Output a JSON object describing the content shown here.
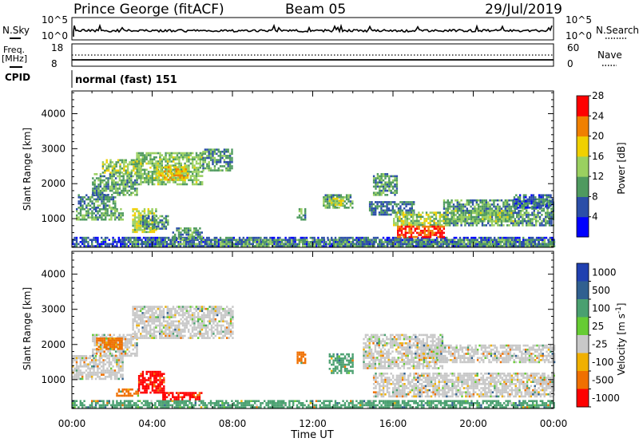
{
  "header": {
    "station": "Prince George (fitACF)",
    "beam": "Beam 05",
    "date": "29/Jul/2019"
  },
  "noise_panel": {
    "left_label": "N.Sky",
    "right_label": "N.Search",
    "left_ticks": [
      "10^5",
      "10^0"
    ],
    "right_ticks": [
      "10^5",
      "10^0"
    ]
  },
  "freq_panel": {
    "left_label_1": "Freq.",
    "left_label_2": "[MHz]",
    "right_label": "Nave",
    "left_ticks": [
      "18",
      "8"
    ],
    "right_ticks": [
      "60",
      "0"
    ]
  },
  "cpid": {
    "label": "CPID",
    "value": "normal (fast) 151"
  },
  "x_axis": {
    "title": "Time UT",
    "tick_labels": [
      "00:00",
      "04:00",
      "08:00",
      "12:00",
      "16:00",
      "20:00",
      "00:00"
    ]
  },
  "colors": {
    "power": [
      "#0000ff",
      "#2b4ea8",
      "#4f9a5f",
      "#9ad060",
      "#f0d000",
      "#f08000",
      "#ff0000"
    ],
    "velocity": [
      "#2040b0",
      "#306090",
      "#4aa070",
      "#66cc33",
      "#c8c8c8",
      "#f0b000",
      "#f07000",
      "#ff0000"
    ]
  },
  "chart_data": [
    {
      "type": "heatmap",
      "title": "",
      "xlabel": "",
      "ylabel": "Slant Range [km]",
      "xlim": [
        0,
        24
      ],
      "ylim": [
        180,
        4650
      ],
      "y_tick_labels": [
        "1000",
        "2000",
        "3000",
        "4000"
      ],
      "colorbar": {
        "label": "Power [dB]",
        "tick_labels": [
          "4",
          "8",
          "12",
          "16",
          "20",
          "24",
          "28"
        ],
        "range": [
          0,
          31
        ]
      },
      "regions": [
        {
          "t0": 0.0,
          "t1": 24.0,
          "r0": 200,
          "r1": 480,
          "value": 6
        },
        {
          "t0": 2.5,
          "t1": 24.0,
          "r0": 200,
          "r1": 420,
          "value": 11
        },
        {
          "t0": 0.2,
          "t1": 2.5,
          "r0": 1000,
          "r1": 1300,
          "value": 12
        },
        {
          "t0": 0.3,
          "t1": 2.2,
          "r0": 1300,
          "r1": 1700,
          "value": 10
        },
        {
          "t0": 1.0,
          "t1": 3.2,
          "r0": 1700,
          "r1": 2300,
          "value": 12
        },
        {
          "t0": 1.5,
          "t1": 3.5,
          "r0": 2300,
          "r1": 2700,
          "value": 15
        },
        {
          "t0": 3.2,
          "t1": 6.5,
          "r0": 2000,
          "r1": 2900,
          "value": 14
        },
        {
          "t0": 4.2,
          "t1": 5.8,
          "r0": 2100,
          "r1": 2500,
          "value": 20
        },
        {
          "t0": 6.5,
          "t1": 8.0,
          "r0": 2400,
          "r1": 3000,
          "value": 11
        },
        {
          "t0": 3.0,
          "t1": 4.2,
          "r0": 600,
          "r1": 1300,
          "value": 17
        },
        {
          "t0": 3.5,
          "t1": 4.8,
          "r0": 700,
          "r1": 1100,
          "value": 10
        },
        {
          "t0": 5.0,
          "t1": 6.5,
          "r0": 450,
          "r1": 750,
          "value": 11
        },
        {
          "t0": 11.2,
          "t1": 11.6,
          "r0": 1000,
          "r1": 1300,
          "value": 12
        },
        {
          "t0": 12.5,
          "t1": 14.0,
          "r0": 1300,
          "r1": 1700,
          "value": 12
        },
        {
          "t0": 12.8,
          "t1": 13.5,
          "r0": 1400,
          "r1": 1600,
          "value": 18
        },
        {
          "t0": 15.0,
          "t1": 16.2,
          "r0": 1700,
          "r1": 2300,
          "value": 11
        },
        {
          "t0": 14.8,
          "t1": 17.0,
          "r0": 1100,
          "r1": 1500,
          "value": 9
        },
        {
          "t0": 16.0,
          "t1": 18.7,
          "r0": 800,
          "r1": 1200,
          "value": 16
        },
        {
          "t0": 16.2,
          "t1": 18.5,
          "r0": 450,
          "r1": 800,
          "value": 27
        },
        {
          "t0": 18.5,
          "t1": 24.0,
          "r0": 800,
          "r1": 1550,
          "value": 11
        },
        {
          "t0": 18.8,
          "t1": 22.0,
          "r0": 900,
          "r1": 1250,
          "value": 14
        },
        {
          "t0": 22.0,
          "t1": 24.0,
          "r0": 1300,
          "r1": 1700,
          "value": 8
        }
      ]
    },
    {
      "type": "heatmap",
      "title": "",
      "xlabel": "Time UT",
      "ylabel": "Slant Range [km]",
      "xlim": [
        0,
        24
      ],
      "ylim": [
        180,
        4650
      ],
      "y_tick_labels": [
        "1000",
        "2000",
        "3000",
        "4000"
      ],
      "colorbar": {
        "label": "Velocity [m s^-1]",
        "tick_labels": [
          "1000",
          "500",
          "100",
          "25",
          "-25",
          "-100",
          "-500",
          "-1000"
        ]
      },
      "regions": [
        {
          "t0": 0.0,
          "t1": 24.0,
          "r0": 200,
          "r1": 420,
          "value": 100
        },
        {
          "t0": 0.0,
          "t1": 2.5,
          "r0": 1000,
          "r1": 1700,
          "value": 0
        },
        {
          "t0": 1.0,
          "t1": 3.2,
          "r0": 1700,
          "r1": 2300,
          "value": 0
        },
        {
          "t0": 1.2,
          "t1": 2.5,
          "r0": 1900,
          "r1": 2200,
          "value": -100
        },
        {
          "t0": 3.0,
          "t1": 8.0,
          "r0": 2200,
          "r1": 3100,
          "value": 0
        },
        {
          "t0": 2.2,
          "t1": 3.3,
          "r0": 550,
          "r1": 750,
          "value": -100
        },
        {
          "t0": 3.3,
          "t1": 4.6,
          "r0": 650,
          "r1": 1250,
          "value": -500
        },
        {
          "t0": 4.5,
          "t1": 6.5,
          "r0": 450,
          "r1": 650,
          "value": -500
        },
        {
          "t0": 11.2,
          "t1": 11.6,
          "r0": 1500,
          "r1": 1800,
          "value": -100
        },
        {
          "t0": 12.8,
          "t1": 14.0,
          "r0": 1200,
          "r1": 1750,
          "value": 100
        },
        {
          "t0": 14.5,
          "t1": 18.5,
          "r0": 1300,
          "r1": 2300,
          "value": 0
        },
        {
          "t0": 15.0,
          "t1": 24.0,
          "r0": 500,
          "r1": 1200,
          "value": 0
        },
        {
          "t0": 17.5,
          "t1": 24.0,
          "r0": 1500,
          "r1": 2000,
          "value": 0
        }
      ]
    }
  ]
}
